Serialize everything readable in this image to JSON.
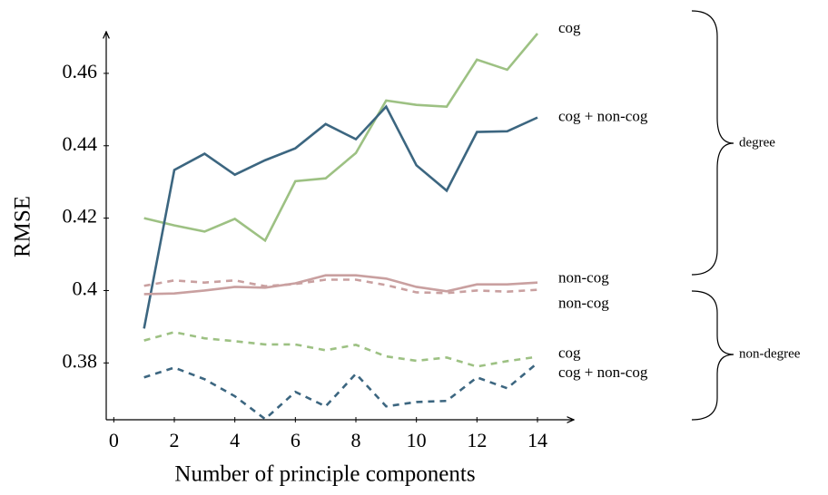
{
  "chart_data": {
    "type": "line",
    "x_label": "Number of principle components",
    "y_label": "RMSE",
    "x": [
      1,
      2,
      3,
      4,
      5,
      6,
      7,
      8,
      9,
      10,
      11,
      12,
      13,
      14
    ],
    "series": [
      {
        "name": "cog",
        "color": "#9dc183",
        "style": "solid",
        "values": [
          0.42,
          0.418,
          0.4163,
          0.4198,
          0.4138,
          0.4302,
          0.431,
          0.438,
          0.4525,
          0.4513,
          0.4508,
          0.4638,
          0.461,
          0.471
        ]
      },
      {
        "name": "cog + non-cog",
        "color": "#3c6680",
        "style": "solid",
        "values": [
          0.3895,
          0.4333,
          0.4378,
          0.432,
          0.436,
          0.4393,
          0.446,
          0.4418,
          0.4508,
          0.4346,
          0.4276,
          0.4438,
          0.444,
          0.4478
        ]
      },
      {
        "name": "non-cog",
        "color": "#c9a0a0",
        "style": "solid",
        "values": [
          0.399,
          0.3992,
          0.4,
          0.401,
          0.4008,
          0.402,
          0.4042,
          0.4042,
          0.4033,
          0.401,
          0.3998,
          0.4017,
          0.4017,
          0.4022
        ]
      },
      {
        "name": "non-cog",
        "color": "#c9a0a0",
        "style": "dashed",
        "values": [
          0.4013,
          0.4028,
          0.4022,
          0.4028,
          0.4012,
          0.4018,
          0.403,
          0.403,
          0.4015,
          0.3995,
          0.3993,
          0.4,
          0.3997,
          0.4002
        ]
      },
      {
        "name": "cog",
        "color": "#9dc183",
        "style": "dashed",
        "values": [
          0.3862,
          0.3885,
          0.3868,
          0.386,
          0.3851,
          0.3851,
          0.3835,
          0.385,
          0.3818,
          0.3806,
          0.3815,
          0.379,
          0.3805,
          0.3817
        ]
      },
      {
        "name": "cog + non-cog",
        "color": "#3c6680",
        "style": "dashed",
        "values": [
          0.376,
          0.3787,
          0.3755,
          0.3708,
          0.3645,
          0.372,
          0.368,
          0.377,
          0.368,
          0.3692,
          0.3695,
          0.376,
          0.373,
          0.38
        ]
      }
    ],
    "groups": [
      "degree",
      "non-degree"
    ],
    "xlim": [
      -0.25,
      15.2
    ],
    "ylim": [
      0.3643,
      0.4715
    ],
    "xticks": [
      0,
      2,
      4,
      6,
      8,
      10,
      12,
      14
    ],
    "yticks": [
      0.38,
      0.4,
      0.42,
      0.44,
      0.46
    ]
  }
}
